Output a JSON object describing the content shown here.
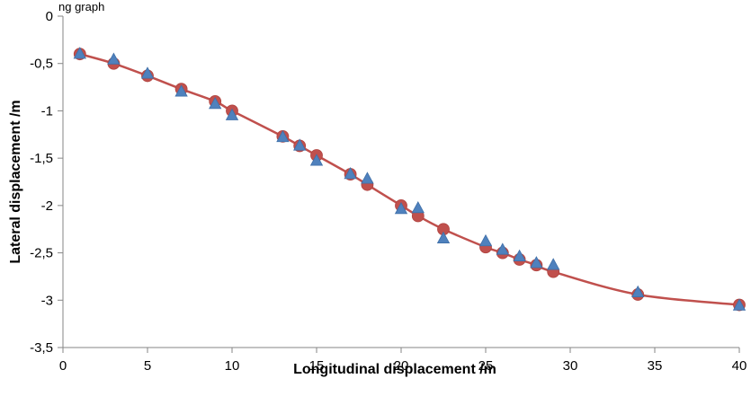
{
  "header_fragment": "ng graph",
  "chart_data": {
    "type": "scatter",
    "title": "",
    "xlabel": "Longitudinal displacement /m",
    "ylabel": "Lateral displacement /m",
    "xlim": [
      0,
      40
    ],
    "ylim": [
      -3.5,
      0
    ],
    "x_ticks": [
      0,
      5,
      10,
      15,
      20,
      25,
      30,
      35,
      40
    ],
    "x_tick_labels": [
      "0",
      "5",
      "10",
      "15",
      "20",
      "25",
      "30",
      "35",
      "40"
    ],
    "y_ticks": [
      0,
      -0.5,
      -1,
      -1.5,
      -2,
      -2.5,
      -3,
      -3.5
    ],
    "y_tick_labels": [
      "0",
      "-0,5",
      "-1",
      "-1,5",
      "-2",
      "-2,5",
      "-3",
      "-3,5"
    ],
    "grid": false,
    "series": [
      {
        "marker": "circle",
        "color": "#c0504d",
        "line": true,
        "line_color": "#c0504d",
        "x": [
          1,
          3,
          5,
          7,
          9,
          10,
          13,
          14,
          15,
          17,
          18,
          20,
          21,
          22.5,
          25,
          26,
          27,
          28,
          29,
          34,
          40
        ],
        "y": [
          -0.4,
          -0.5,
          -0.63,
          -0.77,
          -0.9,
          -1.0,
          -1.27,
          -1.37,
          -1.47,
          -1.67,
          -1.78,
          -2.0,
          -2.11,
          -2.25,
          -2.44,
          -2.5,
          -2.57,
          -2.63,
          -2.7,
          -2.94,
          -3.05
        ]
      },
      {
        "marker": "triangle",
        "color": "#4f81bd",
        "line": false,
        "x": [
          1,
          3,
          5,
          7,
          9,
          10,
          13,
          14,
          15,
          17,
          18,
          20,
          21,
          22.5,
          25,
          26,
          27,
          28,
          29,
          34,
          40
        ],
        "y": [
          -0.4,
          -0.46,
          -0.61,
          -0.8,
          -0.93,
          -1.05,
          -1.28,
          -1.37,
          -1.53,
          -1.67,
          -1.72,
          -2.04,
          -2.03,
          -2.35,
          -2.38,
          -2.47,
          -2.54,
          -2.61,
          -2.63,
          -2.92,
          -3.06
        ]
      }
    ]
  }
}
